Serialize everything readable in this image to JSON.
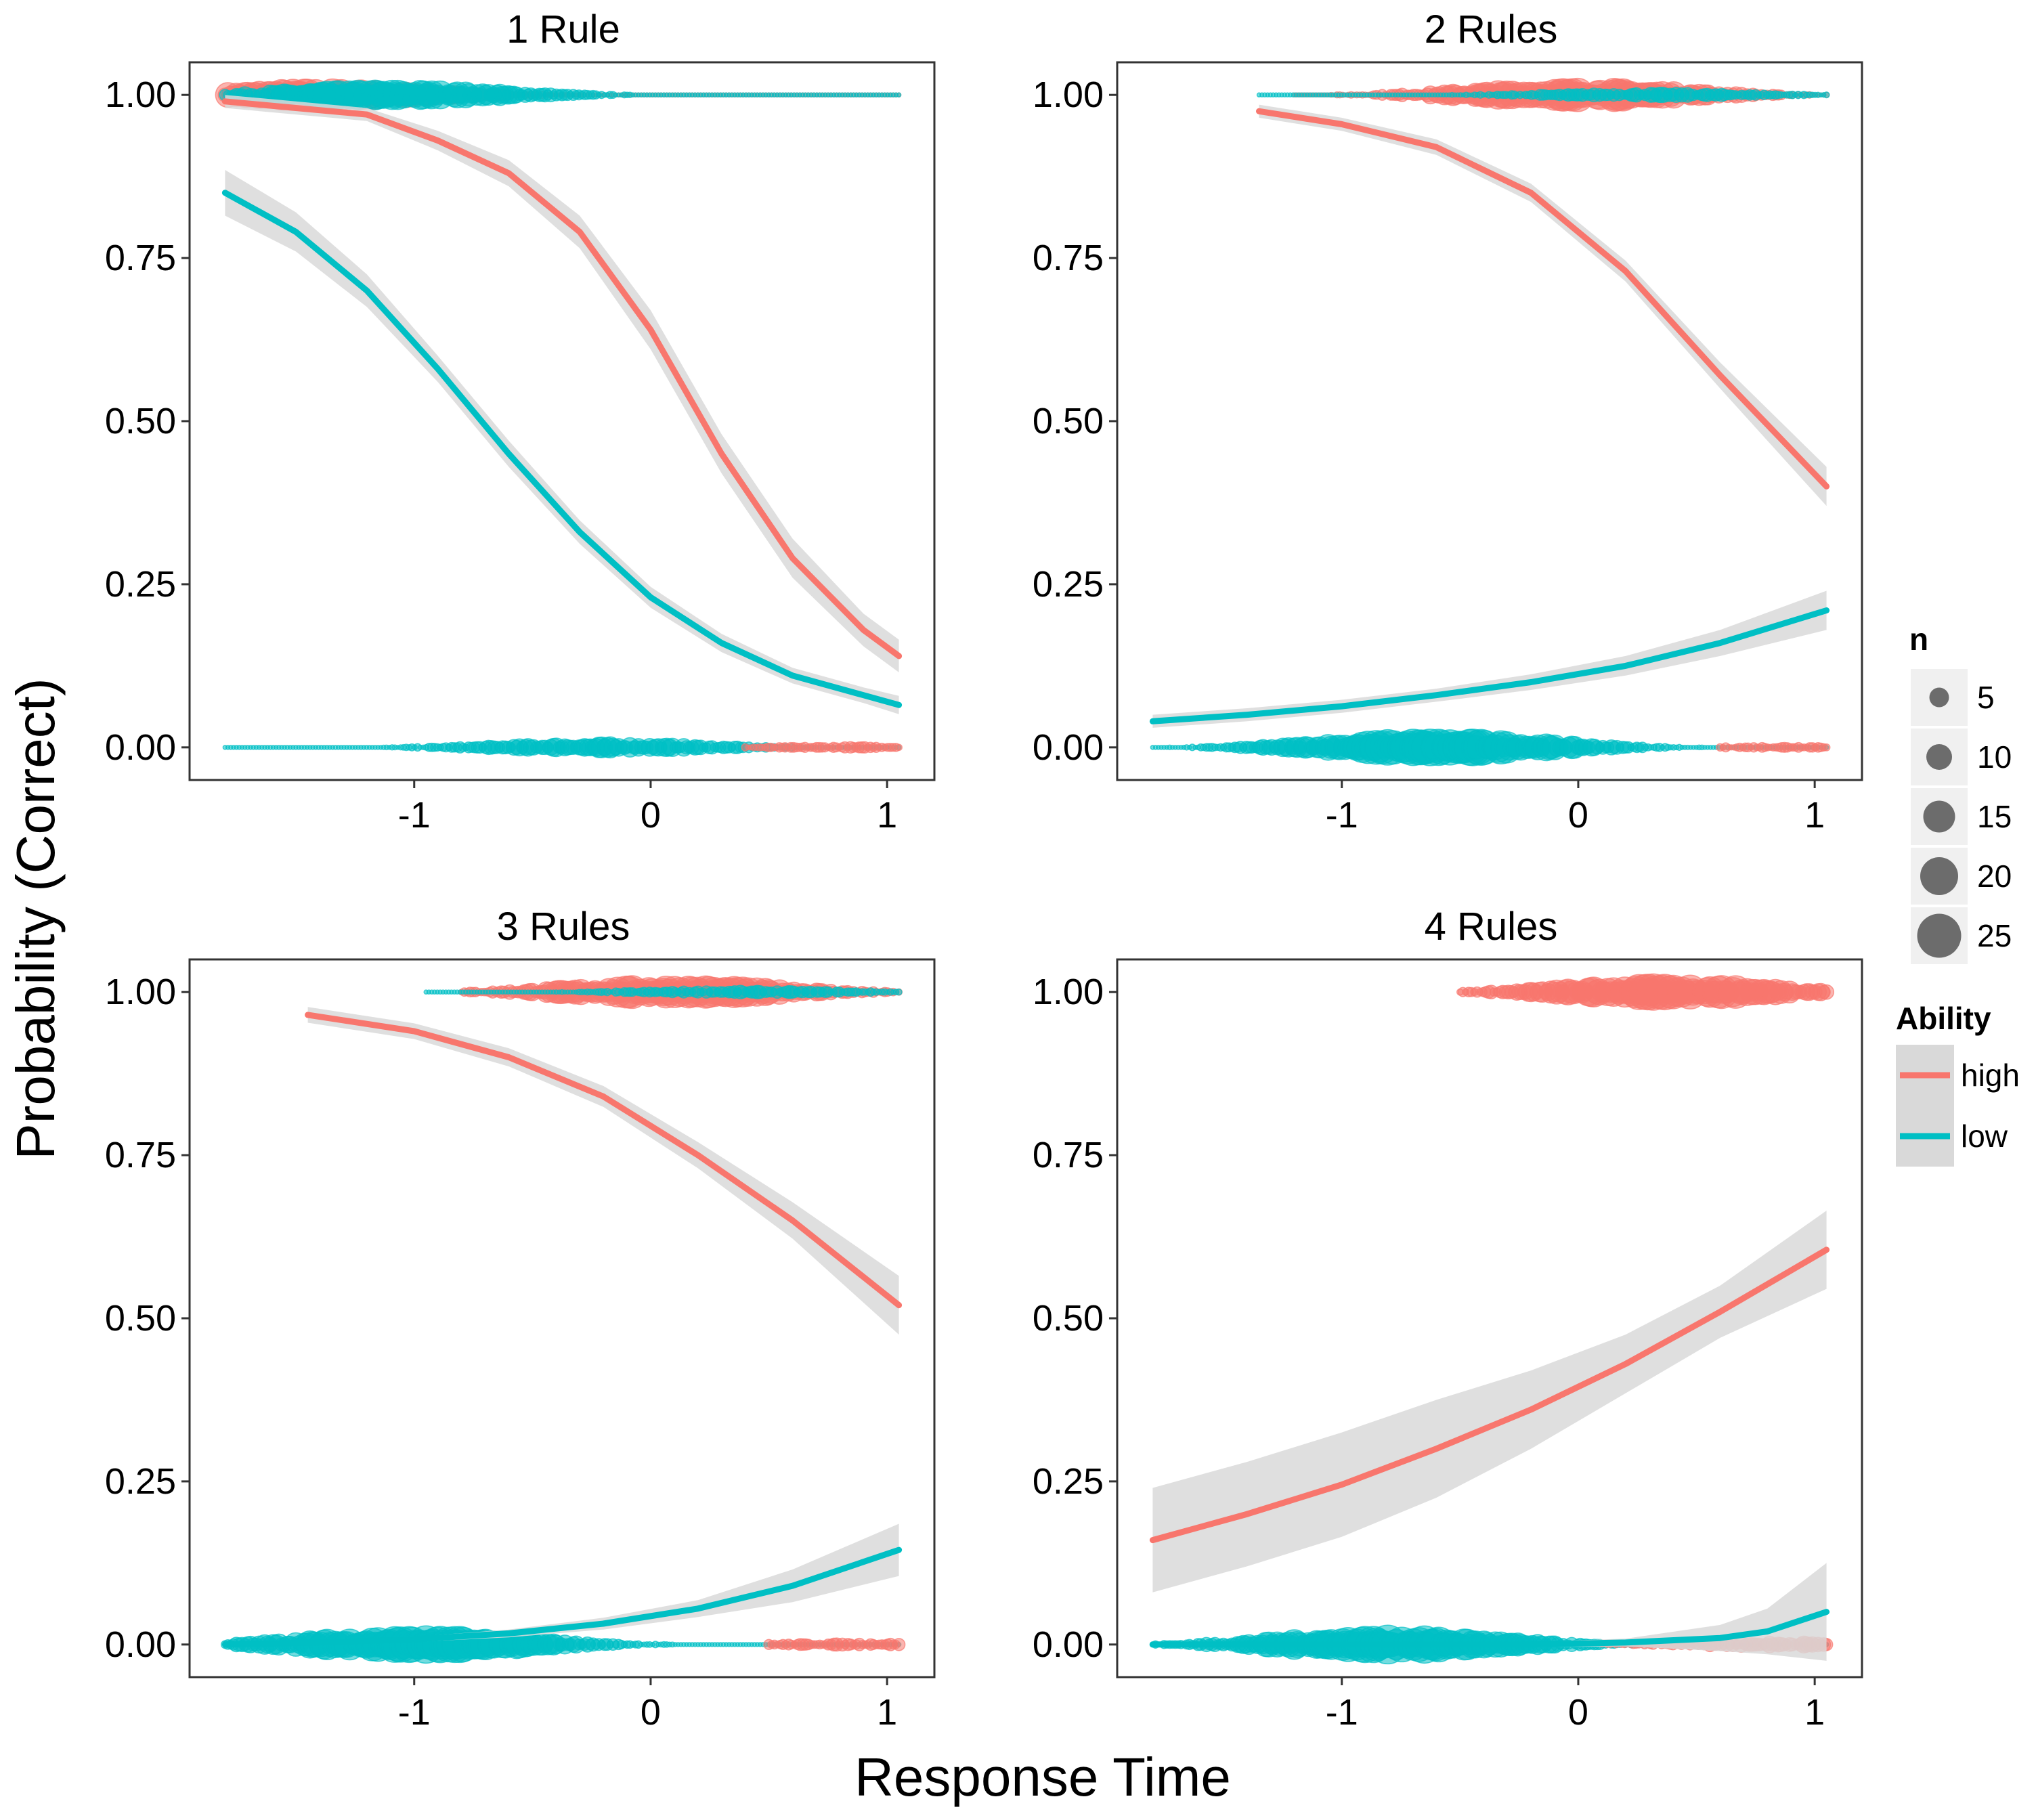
{
  "chart_data": {
    "type": "line",
    "xlabel": "Response Time",
    "ylabel": "Probability (Correct)",
    "xlim": [
      -1.95,
      1.2
    ],
    "ylim": [
      -0.05,
      1.05
    ],
    "x_ticks": [
      -1,
      0,
      1
    ],
    "x_tick_labels": [
      "-1",
      "0",
      "1"
    ],
    "y_ticks": [
      0,
      0.25,
      0.5,
      0.75,
      1.0
    ],
    "y_tick_labels": [
      "0.00",
      "0.25",
      "0.50",
      "0.75",
      "1.00"
    ],
    "colors": {
      "high": "#F8766D",
      "low": "#00BFC4",
      "ribbon": "#d9d9d9",
      "panel_border": "#333333"
    },
    "legend_size": {
      "title": "n",
      "values": [
        5,
        10,
        15,
        20,
        25
      ],
      "labels": [
        "5",
        "10",
        "15",
        "20",
        "25"
      ]
    },
    "legend_color": {
      "title": "Ability",
      "entries": [
        {
          "key": "high",
          "label": "high"
        },
        {
          "key": "low",
          "label": "low"
        }
      ]
    },
    "panels": [
      {
        "title": "1 Rule",
        "series": [
          {
            "name": "high",
            "x": [
              -1.8,
              -1.5,
              -1.2,
              -0.9,
              -0.6,
              -0.3,
              0.0,
              0.3,
              0.6,
              0.9,
              1.05
            ],
            "y": [
              0.99,
              0.98,
              0.97,
              0.93,
              0.88,
              0.79,
              0.64,
              0.45,
              0.29,
              0.18,
              0.14
            ],
            "band": [
              0.01,
              0.01,
              0.01,
              0.015,
              0.02,
              0.025,
              0.03,
              0.03,
              0.03,
              0.025,
              0.025
            ]
          },
          {
            "name": "low",
            "x": [
              -1.8,
              -1.5,
              -1.2,
              -0.9,
              -0.6,
              -0.3,
              0.0,
              0.3,
              0.6,
              0.9,
              1.05
            ],
            "y": [
              0.85,
              0.79,
              0.7,
              0.58,
              0.45,
              0.33,
              0.23,
              0.16,
              0.11,
              0.08,
              0.065
            ],
            "band": [
              0.035,
              0.03,
              0.025,
              0.02,
              0.02,
              0.018,
              0.016,
              0.014,
              0.012,
              0.012,
              0.014
            ]
          }
        ],
        "points": [
          {
            "name": "high",
            "y": 1,
            "x_min": -1.8,
            "x_max": 1.05,
            "peak": -1.4,
            "size_scale": 0.85
          },
          {
            "name": "low",
            "y": 1,
            "x_min": -1.8,
            "x_max": 1.05,
            "peak": -1.1,
            "size_scale": 0.8
          },
          {
            "name": "low",
            "y": 0,
            "x_min": -1.8,
            "x_max": 1.05,
            "peak": -0.2,
            "size_scale": 0.55
          },
          {
            "name": "high",
            "y": 0,
            "x_min": 0.4,
            "x_max": 1.05,
            "peak": 0.9,
            "size_scale": 0.3
          }
        ]
      },
      {
        "title": "2 Rules",
        "series": [
          {
            "name": "high",
            "x": [
              -1.35,
              -1.0,
              -0.6,
              -0.2,
              0.2,
              0.6,
              1.05
            ],
            "y": [
              0.975,
              0.955,
              0.92,
              0.85,
              0.73,
              0.57,
              0.4
            ],
            "band": [
              0.01,
              0.01,
              0.012,
              0.014,
              0.016,
              0.02,
              0.03
            ]
          },
          {
            "name": "low",
            "x": [
              -1.8,
              -1.4,
              -1.0,
              -0.6,
              -0.2,
              0.2,
              0.6,
              1.05
            ],
            "y": [
              0.04,
              0.05,
              0.063,
              0.08,
              0.1,
              0.125,
              0.16,
              0.21
            ],
            "band": [
              0.01,
              0.01,
              0.01,
              0.01,
              0.012,
              0.015,
              0.02,
              0.03
            ]
          }
        ],
        "points": [
          {
            "name": "high",
            "y": 1,
            "x_min": -1.2,
            "x_max": 1.05,
            "peak": 0.0,
            "size_scale": 0.9
          },
          {
            "name": "low",
            "y": 1,
            "x_min": -1.35,
            "x_max": 1.05,
            "peak": 0.3,
            "size_scale": 0.4
          },
          {
            "name": "low",
            "y": 0,
            "x_min": -1.8,
            "x_max": 1.05,
            "peak": -0.6,
            "size_scale": 1.0
          },
          {
            "name": "high",
            "y": 0,
            "x_min": 0.6,
            "x_max": 1.05,
            "peak": 1.0,
            "size_scale": 0.3
          }
        ]
      },
      {
        "title": "3 Rules",
        "series": [
          {
            "name": "high",
            "x": [
              -1.45,
              -1.0,
              -0.6,
              -0.2,
              0.2,
              0.6,
              1.05
            ],
            "y": [
              0.965,
              0.94,
              0.9,
              0.84,
              0.75,
              0.65,
              0.52
            ],
            "band": [
              0.012,
              0.012,
              0.014,
              0.016,
              0.02,
              0.028,
              0.045
            ]
          },
          {
            "name": "low",
            "x": [
              -1.8,
              -1.4,
              -1.0,
              -0.6,
              -0.2,
              0.2,
              0.6,
              1.05
            ],
            "y": [
              0.0,
              0.003,
              0.008,
              0.017,
              0.032,
              0.055,
              0.09,
              0.145
            ],
            "band": [
              0.003,
              0.003,
              0.004,
              0.006,
              0.009,
              0.013,
              0.025,
              0.04
            ]
          }
        ],
        "points": [
          {
            "name": "high",
            "y": 1,
            "x_min": -0.8,
            "x_max": 1.05,
            "peak": 0.1,
            "size_scale": 0.9
          },
          {
            "name": "low",
            "y": 1,
            "x_min": -0.95,
            "x_max": 1.05,
            "peak": 0.4,
            "size_scale": 0.35
          },
          {
            "name": "low",
            "y": 0,
            "x_min": -1.8,
            "x_max": 1.05,
            "peak": -1.0,
            "size_scale": 1.0
          },
          {
            "name": "high",
            "y": 0,
            "x_min": 0.5,
            "x_max": 1.05,
            "peak": 0.9,
            "size_scale": 0.35
          }
        ]
      },
      {
        "title": "4 Rules",
        "series": [
          {
            "name": "high",
            "x": [
              -1.8,
              -1.4,
              -1.0,
              -0.6,
              -0.2,
              0.2,
              0.6,
              1.05
            ],
            "y": [
              0.16,
              0.2,
              0.245,
              0.3,
              0.36,
              0.43,
              0.51,
              0.605
            ],
            "band": [
              0.08,
              0.08,
              0.08,
              0.075,
              0.06,
              0.045,
              0.04,
              0.06
            ]
          },
          {
            "name": "low",
            "x": [
              -1.8,
              -1.2,
              -0.6,
              -0.2,
              0.2,
              0.6,
              0.8,
              1.05
            ],
            "y": [
              0.0,
              0.0,
              0.0,
              0.0,
              0.003,
              0.01,
              0.02,
              0.05
            ],
            "band": [
              0.003,
              0.003,
              0.003,
              0.004,
              0.006,
              0.02,
              0.035,
              0.075
            ]
          }
        ],
        "points": [
          {
            "name": "high",
            "y": 1,
            "x_min": -0.5,
            "x_max": 1.05,
            "peak": 0.4,
            "size_scale": 0.95
          },
          {
            "name": "low",
            "y": 0,
            "x_min": -1.8,
            "x_max": 1.05,
            "peak": -0.8,
            "size_scale": 1.0
          },
          {
            "name": "high",
            "y": 0,
            "x_min": 0.1,
            "x_max": 1.05,
            "peak": 0.9,
            "size_scale": 0.45
          }
        ]
      }
    ]
  }
}
